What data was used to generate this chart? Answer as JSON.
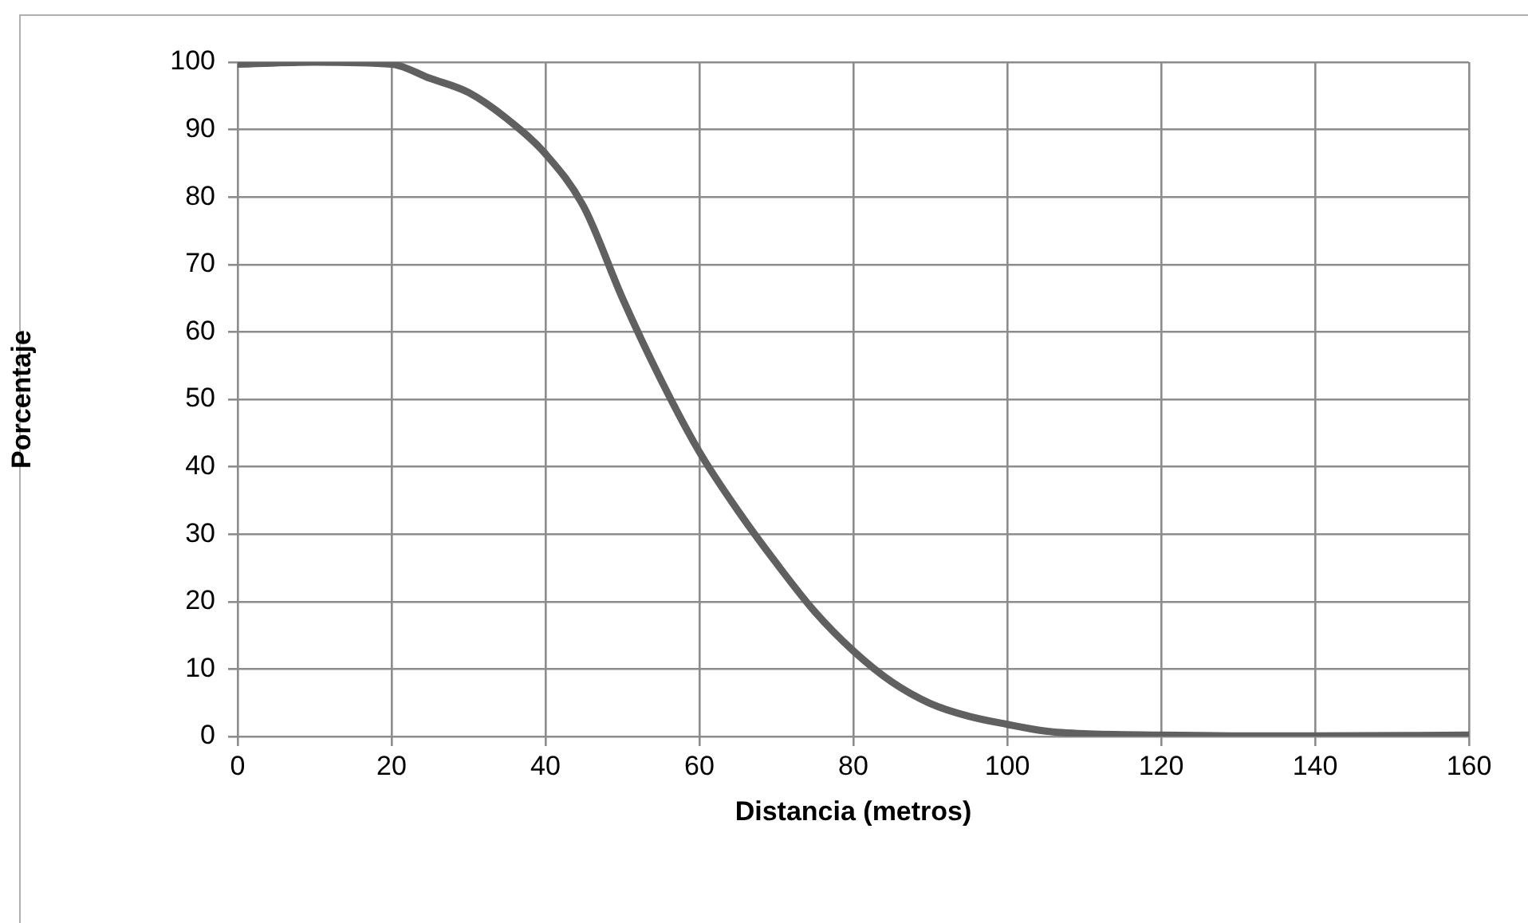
{
  "chart_data": {
    "type": "line",
    "xlabel": "Distancia (metros)",
    "ylabel": "Porcentaje",
    "x": [
      0,
      10,
      20,
      25,
      30,
      35,
      40,
      45,
      50,
      55,
      60,
      65,
      70,
      75,
      80,
      85,
      90,
      95,
      100,
      105,
      110,
      120,
      130,
      140,
      160
    ],
    "series": [
      {
        "color": "#606060",
        "values": [
          99.7,
          100,
          99.7,
          97.6,
          95.5,
          91.6,
          86.4,
          78.5,
          65,
          52.9,
          42.2,
          33.5,
          25.7,
          18.5,
          12.7,
          8.1,
          4.9,
          3,
          1.8,
          0.8,
          0.4,
          0.2,
          0.1,
          0.1,
          0.2
        ]
      }
    ],
    "xlim": [
      0,
      160
    ],
    "xticks": [
      0,
      20,
      40,
      60,
      80,
      100,
      120,
      140,
      160
    ],
    "ylim": [
      0,
      100
    ],
    "yticks": [
      0,
      10,
      20,
      30,
      40,
      50,
      60,
      70,
      80,
      90,
      100
    ],
    "grid": true,
    "legend": false,
    "marker": "none",
    "line_style": "solid"
  }
}
